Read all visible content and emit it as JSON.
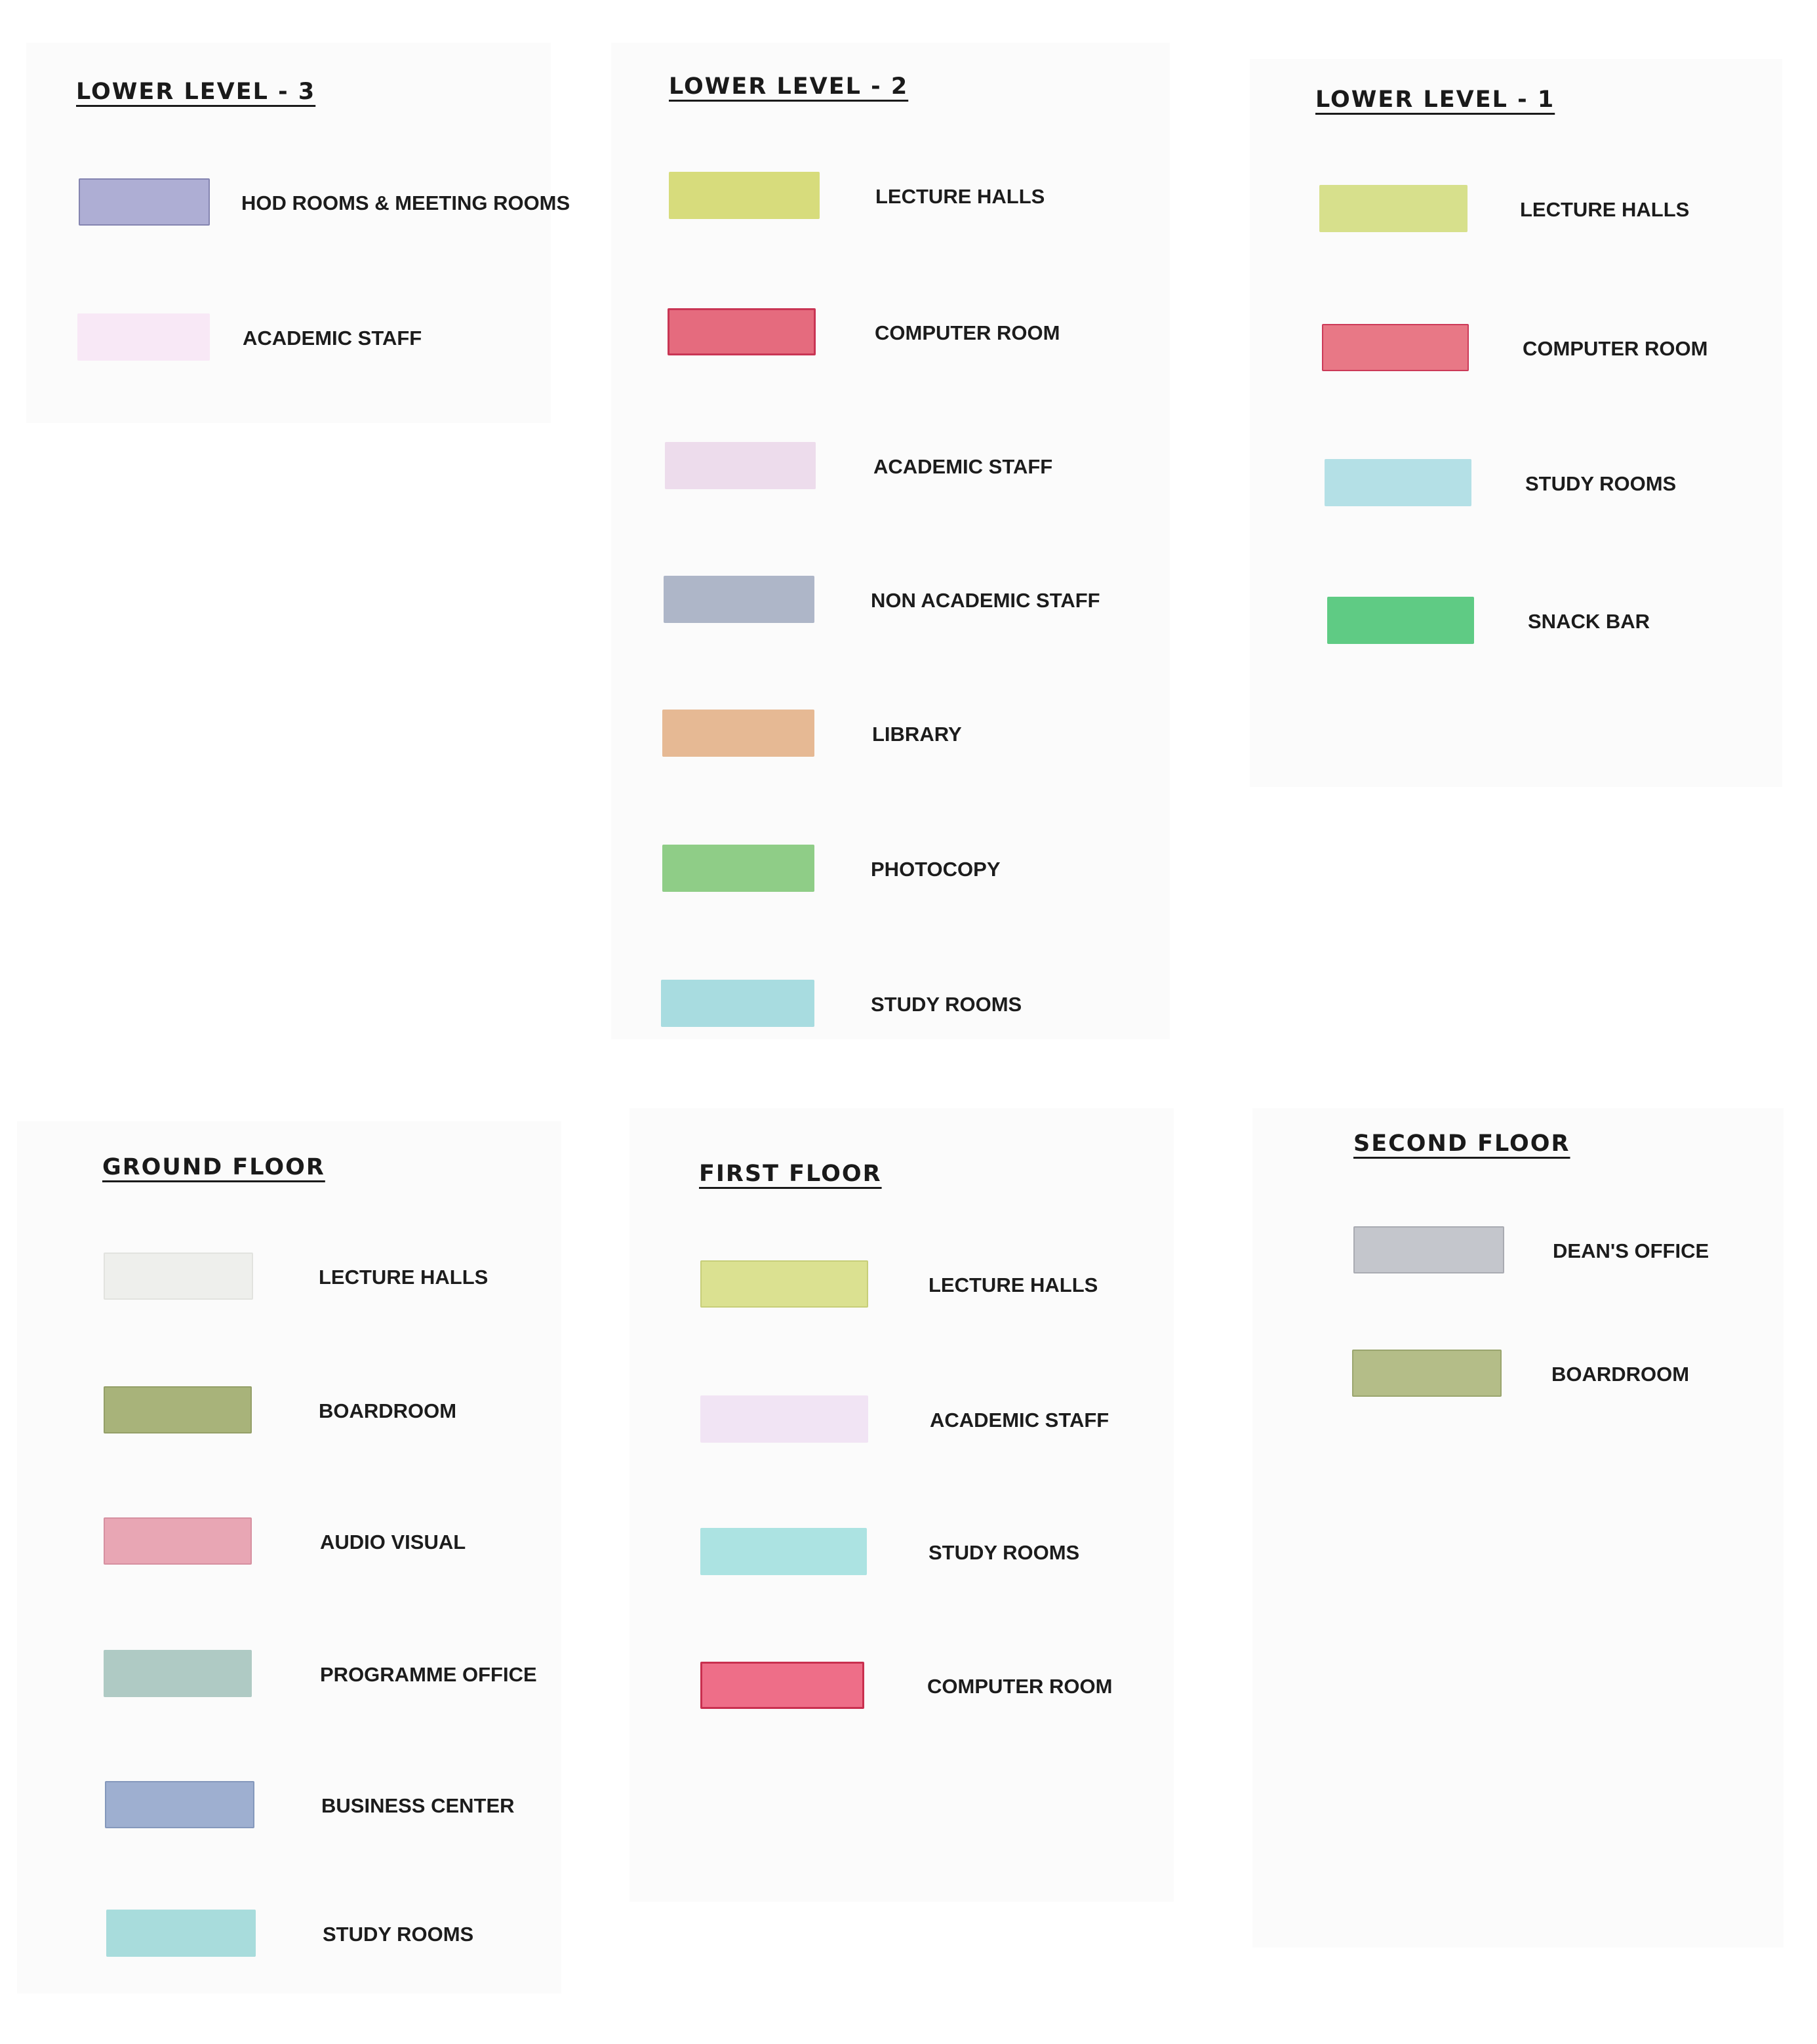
{
  "legends": [
    {
      "title": "LOWER LEVEL - 3",
      "items": [
        {
          "label": "HOD ROOMS & MEETING ROOMS",
          "color": "#aeaed4",
          "border": "#8484b0"
        },
        {
          "label": "ACADEMIC STAFF",
          "color": "#f8e8f6",
          "border": "#f8e8f6"
        }
      ]
    },
    {
      "title": "LOWER LEVEL - 2",
      "items": [
        {
          "label": "LECTURE HALLS",
          "color": "#d7dc7c",
          "border": "#d7dc7c"
        },
        {
          "label": "COMPUTER ROOM",
          "color": "#e56b7e",
          "border": "#c93554"
        },
        {
          "label": "ACADEMIC STAFF",
          "color": "#eddcec",
          "border": "#eddcec"
        },
        {
          "label": "NON ACADEMIC STAFF",
          "color": "#aeb6c8",
          "border": "#aeb6c8"
        },
        {
          "label": "LIBRARY",
          "color": "#e6b994",
          "border": "#e6b994"
        },
        {
          "label": "PHOTOCOPY",
          "color": "#8fcd87",
          "border": "#8fcd87"
        },
        {
          "label": "STUDY ROOMS",
          "color": "#a8dce0",
          "border": "#a8dce0"
        }
      ]
    },
    {
      "title": "LOWER LEVEL - 1",
      "items": [
        {
          "label": "LECTURE HALLS",
          "color": "#d7e08c",
          "border": "#d7e08c"
        },
        {
          "label": "COMPUTER ROOM",
          "color": "#e87886",
          "border": "#cc3a58"
        },
        {
          "label": "STUDY ROOMS",
          "color": "#b4e0e6",
          "border": "#b4e0e6"
        },
        {
          "label": "SNACK BAR",
          "color": "#5fcb84",
          "border": "#5fcb84"
        }
      ]
    },
    {
      "title": "GROUND FLOOR",
      "items": [
        {
          "label": "LECTURE HALLS",
          "color": "#eeefec",
          "border": "#e2e3df"
        },
        {
          "label": "BOARDROOM",
          "color": "#a8b37a",
          "border": "#949f68"
        },
        {
          "label": "AUDIO VISUAL",
          "color": "#e8a6b4",
          "border": "#d690a0"
        },
        {
          "label": "PROGRAMME OFFICE",
          "color": "#afcac4",
          "border": "#afcac4"
        },
        {
          "label": "BUSINESS CENTER",
          "color": "#9eafd0",
          "border": "#8498bc"
        },
        {
          "label": "STUDY ROOMS",
          "color": "#a8dcdc",
          "border": "#a8dcdc"
        }
      ]
    },
    {
      "title": "FIRST FLOOR",
      "items": [
        {
          "label": "LECTURE HALLS",
          "color": "#dbe191",
          "border": "#c7ce79"
        },
        {
          "label": "ACADEMIC STAFF",
          "color": "#f1e4f4",
          "border": "#f1e4f4"
        },
        {
          "label": "STUDY ROOMS",
          "color": "#ace3e2",
          "border": "#ace3e2"
        },
        {
          "label": "COMPUTER ROOM",
          "color": "#ee6e88",
          "border": "#c9304f"
        }
      ]
    },
    {
      "title": "SECOND FLOOR",
      "items": [
        {
          "label": "DEAN'S OFFICE",
          "color": "#c4c6cc",
          "border": "#a9abb2"
        },
        {
          "label": "BOARDROOM",
          "color": "#b4bd88",
          "border": "#9aa56e"
        }
      ]
    }
  ]
}
